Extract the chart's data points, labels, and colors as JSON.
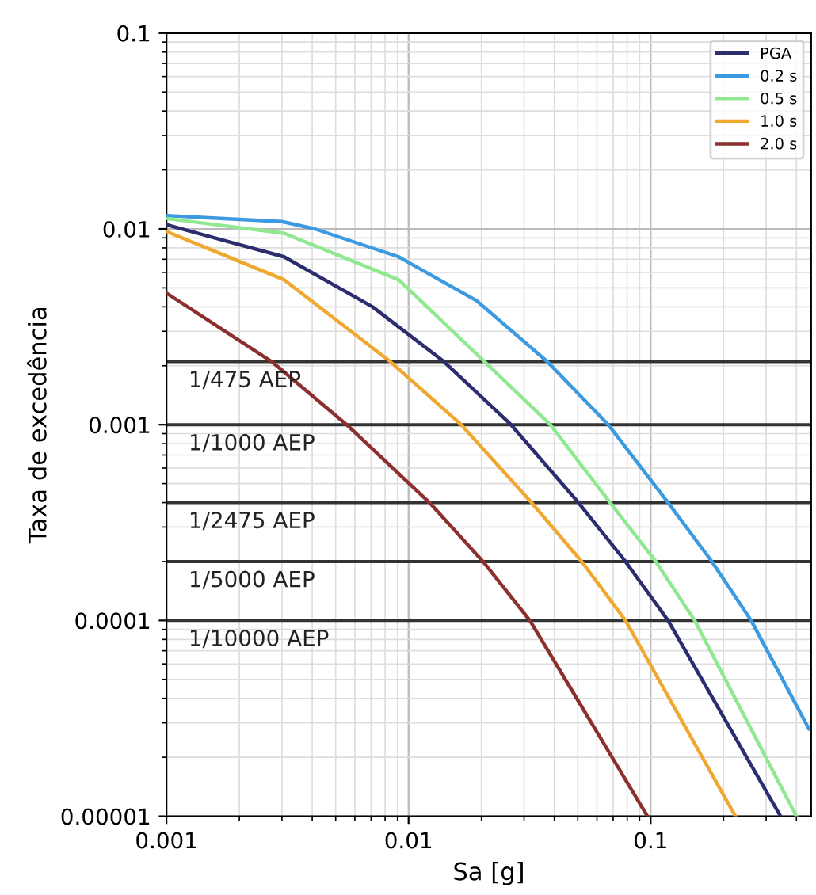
{
  "chart_data": {
    "type": "line",
    "xlabel": "Sa [g]",
    "ylabel": "Taxa de excedência",
    "log": "xy",
    "grid": true,
    "legend": "top right",
    "line_style": "solid",
    "marker": "none",
    "xlim": [
      0.001,
      0.46
    ],
    "xticks": [
      0.001,
      0.01,
      0.1
    ],
    "ylim": [
      1e-05,
      0.1
    ],
    "yticks": [
      {
        "value": 1e-05,
        "label": "0.00001"
      },
      {
        "value": 0.0001,
        "label": "0.0001"
      },
      {
        "value": 0.001,
        "label": "0.001"
      },
      {
        "value": 0.01,
        "label": "0.01"
      },
      {
        "value": 0.1,
        "label": "0.1"
      }
    ],
    "series": [
      {
        "name": "PGA",
        "color": "#2b2d6e",
        "x": [
          0.001,
          0.00306,
          0.0071,
          0.014,
          0.0265,
          0.0503,
          0.0787,
          0.118,
          0.344
        ],
        "values": [
          0.0105,
          0.0072,
          0.004,
          0.0021,
          0.001,
          0.0004,
          0.0002,
          0.0001,
          1e-05
        ]
      },
      {
        "name": "0.2 s",
        "color": "#3b9ae0",
        "x": [
          0.001,
          0.003,
          0.0041,
          0.0091,
          0.0191,
          0.0374,
          0.0668,
          0.118,
          0.179,
          0.26,
          0.45
        ],
        "values": [
          0.0117,
          0.0109,
          0.01,
          0.0072,
          0.0043,
          0.0021,
          0.001,
          0.0004,
          0.0002,
          0.0001,
          2.8e-05
        ]
      },
      {
        "name": "0.5 s",
        "color": "#90e890",
        "x": [
          0.001,
          0.00306,
          0.0091,
          0.0206,
          0.0385,
          0.068,
          0.105,
          0.152,
          0.4
        ],
        "values": [
          0.0113,
          0.0095,
          0.0055,
          0.0021,
          0.001,
          0.0004,
          0.0002,
          0.0001,
          1e-05
        ]
      },
      {
        "name": "1.0 s",
        "color": "#f0a830",
        "x": [
          0.001,
          0.00306,
          0.0084,
          0.0165,
          0.0322,
          0.0519,
          0.0787,
          0.224
        ],
        "values": [
          0.0097,
          0.0055,
          0.0021,
          0.001,
          0.0004,
          0.0002,
          0.0001,
          1e-05
        ]
      },
      {
        "name": "2.0 s",
        "color": "#8b2f2f",
        "x": [
          0.001,
          0.00272,
          0.00555,
          0.0122,
          0.0203,
          0.0317,
          0.0495,
          0.097
        ],
        "values": [
          0.0047,
          0.0021,
          0.001,
          0.0004,
          0.0002,
          0.0001,
          4e-05,
          1e-05
        ]
      }
    ],
    "ref_lines": [
      {
        "axis": "y",
        "value": 0.0021,
        "label": "1/475 AEP",
        "color": "#333333"
      },
      {
        "axis": "y",
        "value": 0.001,
        "label": "1/1000 AEP",
        "color": "#333333"
      },
      {
        "axis": "y",
        "value": 0.0004,
        "label": "1/2475 AEP",
        "color": "#333333"
      },
      {
        "axis": "y",
        "value": 0.0002,
        "label": "1/5000 AEP",
        "color": "#333333"
      },
      {
        "axis": "y",
        "value": 0.0001,
        "label": "1/10000 AEP",
        "color": "#333333"
      }
    ]
  }
}
